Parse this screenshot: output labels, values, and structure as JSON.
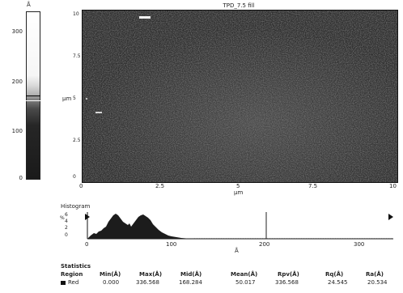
{
  "image_title": "TPD_7.5 fill",
  "color_scale": {
    "unit": "Å",
    "ticks": [
      "300",
      "200",
      "100",
      "0"
    ]
  },
  "axes": {
    "x_ticks": [
      "0",
      "2.5",
      "5",
      "7.5",
      "10"
    ],
    "x_label": "µm",
    "y_ticks": [
      "10",
      "7.5",
      "5",
      "2.5",
      "0"
    ],
    "y_label": "µm"
  },
  "histogram": {
    "title": "Histogram",
    "y_ticks": [
      "6",
      "4",
      "2",
      "0"
    ],
    "y_unit": "%",
    "x_ticks": [
      "0",
      "100",
      "200",
      "300"
    ],
    "x_label": "Å"
  },
  "statistics": {
    "title": "Statistics",
    "headers": [
      "Region",
      "Min(Å)",
      "Max(Å)",
      "Mid(Å)",
      "Mean(Å)",
      "Rpv(Å)",
      "Rq(Å)",
      "Ra(Å)"
    ],
    "rows": [
      {
        "region": "Red",
        "values": [
          "0.000",
          "336.568",
          "168.284",
          "50.017",
          "336.568",
          "24.545",
          "20.534"
        ]
      }
    ]
  },
  "colors": {
    "image_bg": "#3a3a3a",
    "scale_dark": "#1b1b1b",
    "scale_light": "#d8d8d8",
    "histogram_fill": "#1c1c1c"
  }
}
